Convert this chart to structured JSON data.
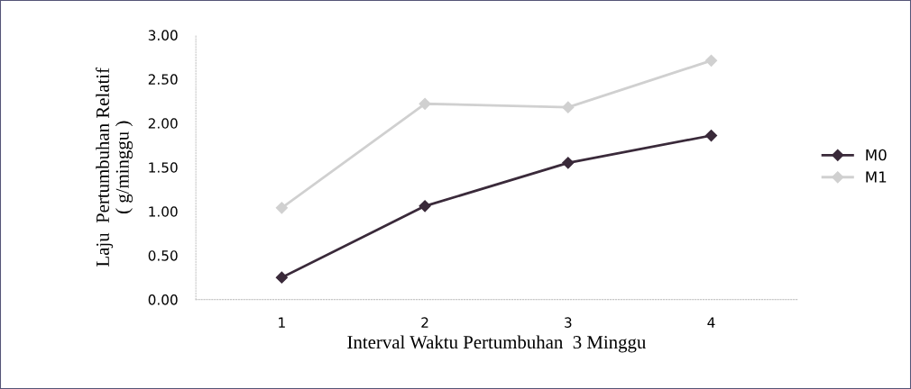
{
  "chart_data": {
    "type": "line",
    "xlabel": "Interval Waktu Pertumbuhan  3 Minggu",
    "ylabel": "Laju  Pertumbuhan Relatif\n( g/minggu )",
    "categories": [
      "1",
      "2",
      "3",
      "4"
    ],
    "series": [
      {
        "name": "M0",
        "color": "#3a2a3a",
        "values": [
          0.25,
          1.06,
          1.55,
          1.86
        ]
      },
      {
        "name": "M1",
        "color": "#d0d0d0",
        "values": [
          1.04,
          2.22,
          2.18,
          2.71
        ]
      }
    ],
    "ylim": [
      0,
      3
    ],
    "yticks": [
      {
        "value": 0,
        "label": "0.00"
      },
      {
        "value": 0.5,
        "label": "0.50"
      },
      {
        "value": 1,
        "label": "1.00"
      },
      {
        "value": 1.5,
        "label": "1.50"
      },
      {
        "value": 2,
        "label": "2.00"
      },
      {
        "value": 2.5,
        "label": "2.50"
      },
      {
        "value": 3,
        "label": "3.00"
      }
    ],
    "marker": "diamond",
    "legend": "right",
    "grid": false
  }
}
